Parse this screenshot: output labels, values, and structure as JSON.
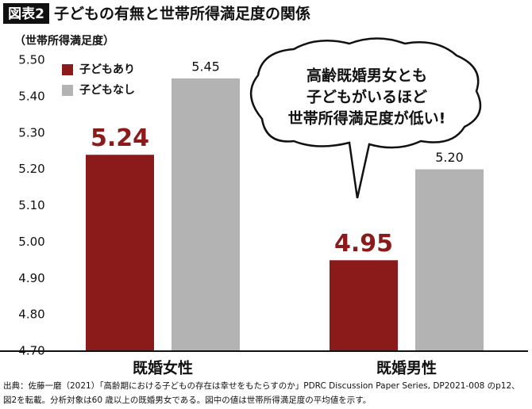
{
  "chart_data": {
    "type": "bar",
    "badge": "図表2",
    "title": "子どもの有無と世帯所得満足度の関係",
    "y_label": "（世帯所得満足度）",
    "categories": [
      "既婚女性",
      "既婚男性"
    ],
    "series": [
      {
        "name": "子どもあり",
        "color": "#8b1a1a",
        "values": [
          5.24,
          4.95
        ],
        "value_labels": [
          "5.24",
          "4.95"
        ]
      },
      {
        "name": "子どもなし",
        "color": "#b3b3b3",
        "values": [
          5.45,
          5.2
        ],
        "value_labels": [
          "5.45",
          "5.20"
        ]
      }
    ],
    "ylim": [
      4.7,
      5.5
    ],
    "yticks": [
      {
        "value": 4.7,
        "label": "4.70"
      },
      {
        "value": 4.8,
        "label": "4.80"
      },
      {
        "value": 4.9,
        "label": "4.90"
      },
      {
        "value": 5,
        "label": "5.00"
      },
      {
        "value": 5.1,
        "label": "5.10"
      },
      {
        "value": 5.2,
        "label": "5.20"
      },
      {
        "value": 5.3,
        "label": "5.30"
      },
      {
        "value": 5.4,
        "label": "5.40"
      },
      {
        "value": 5.5,
        "label": "5.50"
      }
    ],
    "grid": false,
    "annotation": [
      "高齢既婚男女とも",
      "子どもがいるほど",
      "世帯所得満足度が低い!"
    ],
    "source": [
      "出典：佐藤一磨（2021）「高齢期における子どもの存在は幸せをもたらすのか」PDRC Discussion Paper Series, DP2021-008 のp12、",
      "図2を転載。分析対象は60 歳以上の既婚男女である。図中の値は世帯所得満足度の平均値を示す。"
    ]
  }
}
